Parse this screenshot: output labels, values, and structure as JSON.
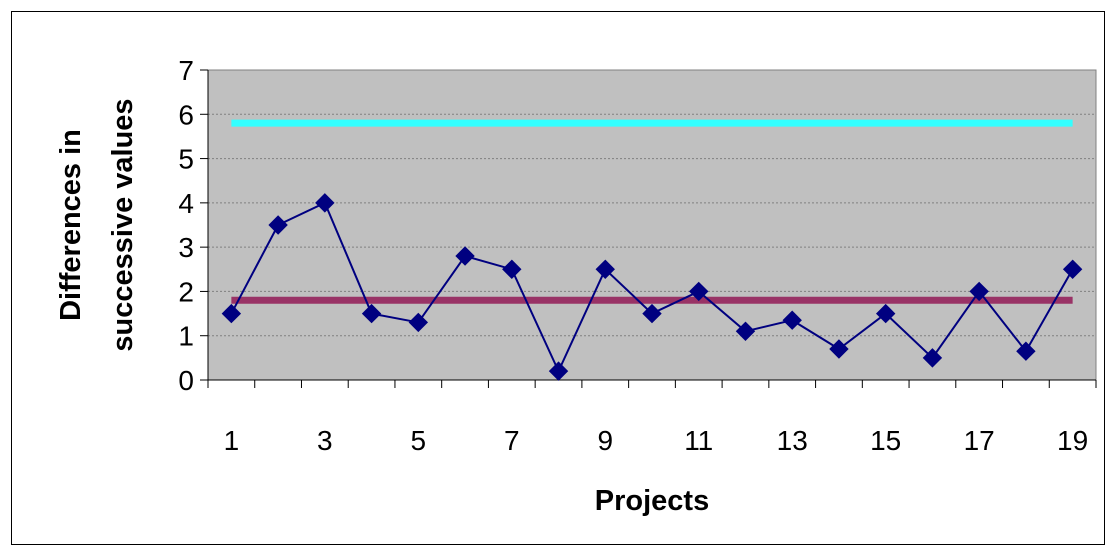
{
  "chart_data": {
    "type": "line",
    "title": "",
    "xlabel": "Projects",
    "ylabel_line1": "Differences in",
    "ylabel_line2": "successive values",
    "x": [
      1,
      2,
      3,
      4,
      5,
      6,
      7,
      8,
      9,
      10,
      11,
      12,
      13,
      14,
      15,
      16,
      17,
      18,
      19
    ],
    "x_tick_labels": [
      "1",
      "3",
      "5",
      "7",
      "9",
      "11",
      "13",
      "15",
      "17",
      "19"
    ],
    "y_tick_labels": [
      "0",
      "1",
      "2",
      "3",
      "4",
      "5",
      "6",
      "7"
    ],
    "ylim": [
      0,
      7
    ],
    "grid": true,
    "series": [
      {
        "values": [
          1.5,
          3.5,
          4.0,
          1.5,
          1.3,
          2.8,
          2.5,
          0.2,
          2.5,
          1.5,
          2.0,
          1.1,
          1.35,
          0.7,
          1.5,
          0.5,
          2.0,
          0.65,
          2.5
        ],
        "color": "#000080",
        "marker": "diamond"
      }
    ],
    "reference_lines": [
      {
        "value": 5.8,
        "color": "#33ffff"
      },
      {
        "value": 1.8,
        "color": "#993366"
      }
    ],
    "plot_background": "#c0c0c0"
  }
}
